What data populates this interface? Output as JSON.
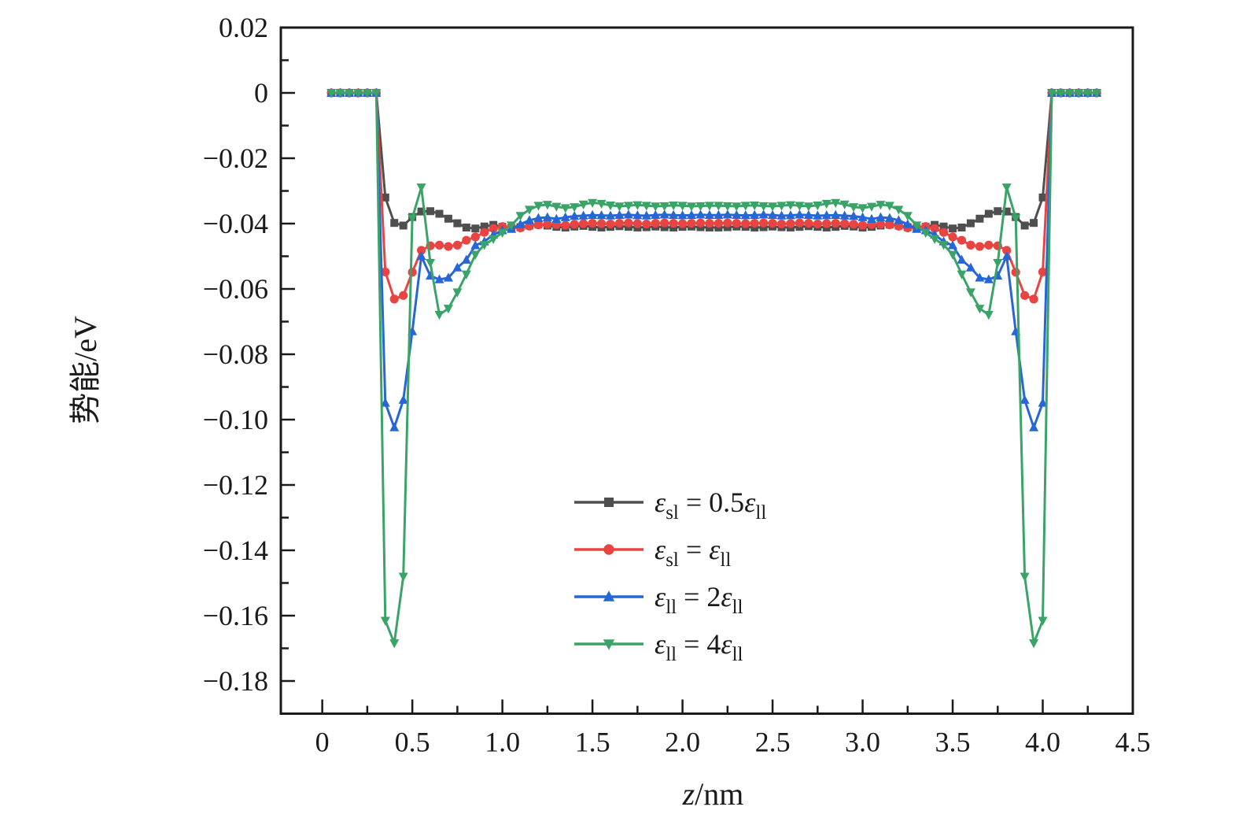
{
  "figure": {
    "background": "#ffffff",
    "axis_color": "#1a1a1a"
  },
  "chart_data": {
    "type": "line",
    "title": "",
    "xlabel": "z/nm",
    "xlabel_parts": [
      [
        "z",
        "i"
      ],
      [
        "/nm",
        "n"
      ]
    ],
    "ylabel": "势能/eV",
    "xlim": [
      -0.23,
      4.5
    ],
    "ylim": [
      -0.19,
      0.02
    ],
    "grid": false,
    "legend_position": "lower-center",
    "x_major_ticks": {
      "values": [
        0,
        0.5,
        1.0,
        1.5,
        2.0,
        2.5,
        3.0,
        3.5,
        4.0,
        4.5
      ],
      "labels": [
        "0",
        "0.5",
        "1.0",
        "1.5",
        "2.0",
        "2.5",
        "3.0",
        "3.5",
        "4.0",
        "4.5"
      ]
    },
    "x_minor_ticks": [
      0.25,
      0.75,
      1.25,
      1.75,
      2.25,
      2.75,
      3.25,
      3.75,
      4.25
    ],
    "y_major_ticks": {
      "values": [
        0.02,
        0,
        -0.02,
        -0.04,
        -0.06,
        -0.08,
        -0.1,
        -0.12,
        -0.14,
        -0.16,
        -0.18
      ],
      "labels": [
        "0.02",
        "0",
        "−0.02",
        "−0.04",
        "−0.06",
        "−0.08",
        "−0.10",
        "−0.12",
        "−0.14",
        "−0.16",
        "−0.18"
      ]
    },
    "y_minor_ticks": [
      0.01,
      -0.01,
      -0.03,
      -0.05,
      -0.07,
      -0.09,
      -0.11,
      -0.13,
      -0.15,
      -0.17
    ],
    "x": [
      0.05,
      0.1,
      0.15,
      0.2,
      0.25,
      0.3,
      0.35,
      0.4,
      0.45,
      0.5,
      0.55,
      0.6,
      0.65,
      0.7,
      0.75,
      0.8,
      0.85,
      0.9,
      0.95,
      1.0,
      1.05,
      1.1,
      1.15,
      1.2,
      1.25,
      1.3,
      1.35,
      1.4,
      1.45,
      1.5,
      1.55,
      1.6,
      1.65,
      1.7,
      1.75,
      1.8,
      1.85,
      1.9,
      1.95,
      2.0,
      2.05,
      2.1,
      2.15,
      2.2,
      2.25,
      2.3,
      2.35,
      2.4,
      2.45,
      2.5,
      2.55,
      2.6,
      2.65,
      2.7,
      2.75,
      2.8,
      2.85,
      2.9,
      2.95,
      3.0,
      3.05,
      3.1,
      3.15,
      3.2,
      3.25,
      3.3,
      3.35,
      3.4,
      3.45,
      3.5,
      3.55,
      3.6,
      3.65,
      3.7,
      3.75,
      3.8,
      3.85,
      3.9,
      3.95,
      4.0,
      4.05,
      4.1,
      4.15,
      4.2,
      4.25,
      4.3
    ],
    "series": [
      {
        "label": "ε_sl = 0.5ε_ll",
        "label_rich": "ε~sl~ = 0.5ε~ll~",
        "color": "#4f4f4f",
        "marker": "square",
        "values": [
          0,
          0,
          0,
          0,
          0,
          0,
          -0.032,
          -0.0398,
          -0.0406,
          -0.038,
          -0.0363,
          -0.0362,
          -0.037,
          -0.0385,
          -0.0399,
          -0.0412,
          -0.0415,
          -0.0409,
          -0.0404,
          -0.041,
          -0.0414,
          -0.0411,
          -0.0406,
          -0.0403,
          -0.0406,
          -0.041,
          -0.0412,
          -0.0409,
          -0.0407,
          -0.041,
          -0.0412,
          -0.041,
          -0.0408,
          -0.041,
          -0.0412,
          -0.0411,
          -0.0409,
          -0.0411,
          -0.0412,
          -0.041,
          -0.0409,
          -0.0411,
          -0.0412,
          -0.0412,
          -0.0411,
          -0.0409,
          -0.041,
          -0.0412,
          -0.0411,
          -0.0409,
          -0.0411,
          -0.0412,
          -0.041,
          -0.0408,
          -0.041,
          -0.0412,
          -0.041,
          -0.0407,
          -0.0409,
          -0.0412,
          -0.041,
          -0.0406,
          -0.0403,
          -0.0406,
          -0.0411,
          -0.0414,
          -0.041,
          -0.0404,
          -0.0409,
          -0.0415,
          -0.0412,
          -0.0399,
          -0.0385,
          -0.037,
          -0.0362,
          -0.0363,
          -0.038,
          -0.0406,
          -0.0398,
          -0.032,
          0,
          0,
          0,
          0,
          0,
          0
        ]
      },
      {
        "label": "ε_sl = ε_ll",
        "label_rich": "ε~sl~ = ε~ll~",
        "color": "#e84442",
        "marker": "circle",
        "values": [
          0,
          0,
          0,
          0,
          0,
          0,
          -0.0548,
          -0.0631,
          -0.062,
          -0.0549,
          -0.0482,
          -0.0468,
          -0.0466,
          -0.047,
          -0.0466,
          -0.0451,
          -0.0441,
          -0.0427,
          -0.0415,
          -0.0409,
          -0.0411,
          -0.0413,
          -0.0408,
          -0.0404,
          -0.0402,
          -0.0403,
          -0.0405,
          -0.0402,
          -0.04,
          -0.0399,
          -0.04,
          -0.0401,
          -0.0399,
          -0.0398,
          -0.04,
          -0.0401,
          -0.0399,
          -0.0398,
          -0.0399,
          -0.04,
          -0.0399,
          -0.0398,
          -0.0399,
          -0.0399,
          -0.0398,
          -0.0399,
          -0.04,
          -0.0399,
          -0.0398,
          -0.0399,
          -0.0401,
          -0.04,
          -0.0398,
          -0.0399,
          -0.0401,
          -0.04,
          -0.0399,
          -0.04,
          -0.0402,
          -0.0405,
          -0.0403,
          -0.0402,
          -0.0404,
          -0.0408,
          -0.0413,
          -0.0411,
          -0.0409,
          -0.0415,
          -0.0427,
          -0.0441,
          -0.0451,
          -0.0466,
          -0.047,
          -0.0466,
          -0.0468,
          -0.0482,
          -0.0549,
          -0.062,
          -0.0631,
          -0.0548,
          0,
          0,
          0,
          0,
          0,
          0
        ]
      },
      {
        "label": "ε_ll = 2ε_ll",
        "label_rich": "ε~ll~ = 2ε~ll~",
        "color": "#2766d6",
        "marker": "triangle-up",
        "values": [
          0,
          0,
          0,
          0,
          0,
          0,
          -0.0949,
          -0.1024,
          -0.094,
          -0.073,
          -0.05,
          -0.056,
          -0.0571,
          -0.0566,
          -0.0535,
          -0.0511,
          -0.0467,
          -0.0455,
          -0.0434,
          -0.0421,
          -0.0417,
          -0.0402,
          -0.039,
          -0.0383,
          -0.0381,
          -0.0386,
          -0.0381,
          -0.0377,
          -0.0376,
          -0.0374,
          -0.0375,
          -0.0376,
          -0.0374,
          -0.0373,
          -0.0375,
          -0.0376,
          -0.0374,
          -0.0373,
          -0.0374,
          -0.0375,
          -0.0374,
          -0.0373,
          -0.0374,
          -0.0374,
          -0.0373,
          -0.0374,
          -0.0375,
          -0.0374,
          -0.0373,
          -0.0374,
          -0.0376,
          -0.0375,
          -0.0373,
          -0.0374,
          -0.0376,
          -0.0375,
          -0.0374,
          -0.0376,
          -0.0377,
          -0.0381,
          -0.0386,
          -0.0381,
          -0.0383,
          -0.039,
          -0.0402,
          -0.0417,
          -0.0421,
          -0.0434,
          -0.0455,
          -0.0467,
          -0.0511,
          -0.0535,
          -0.0566,
          -0.0571,
          -0.056,
          -0.05,
          -0.073,
          -0.094,
          -0.1024,
          -0.0949,
          0,
          0,
          0,
          0,
          0,
          0
        ]
      },
      {
        "label": "ε_ll = 4ε_ll",
        "label_rich": "ε~ll~ = 4ε~ll~",
        "color": "#3aa468",
        "marker": "triangle-down",
        "values": [
          0,
          0,
          0,
          0,
          0,
          0,
          -0.1615,
          -0.1684,
          -0.148,
          -0.0383,
          -0.0289,
          -0.052,
          -0.0679,
          -0.066,
          -0.061,
          -0.0555,
          -0.0495,
          -0.0465,
          -0.0447,
          -0.0428,
          -0.0405,
          -0.0376,
          -0.0357,
          -0.0345,
          -0.0342,
          -0.0348,
          -0.0352,
          -0.0349,
          -0.0341,
          -0.0336,
          -0.0339,
          -0.0344,
          -0.0347,
          -0.0345,
          -0.0343,
          -0.0345,
          -0.0347,
          -0.0346,
          -0.0344,
          -0.0345,
          -0.0347,
          -0.0346,
          -0.0345,
          -0.0345,
          -0.0346,
          -0.0347,
          -0.0345,
          -0.0344,
          -0.0346,
          -0.0347,
          -0.0345,
          -0.0343,
          -0.0345,
          -0.0347,
          -0.0344,
          -0.0339,
          -0.0336,
          -0.0341,
          -0.0349,
          -0.0352,
          -0.0348,
          -0.0342,
          -0.0345,
          -0.0357,
          -0.0376,
          -0.0405,
          -0.0428,
          -0.0447,
          -0.0465,
          -0.0495,
          -0.0555,
          -0.061,
          -0.066,
          -0.0679,
          -0.052,
          -0.0289,
          -0.0383,
          -0.148,
          -0.1684,
          -0.1615,
          0,
          0,
          0,
          0,
          0,
          0
        ]
      }
    ]
  }
}
